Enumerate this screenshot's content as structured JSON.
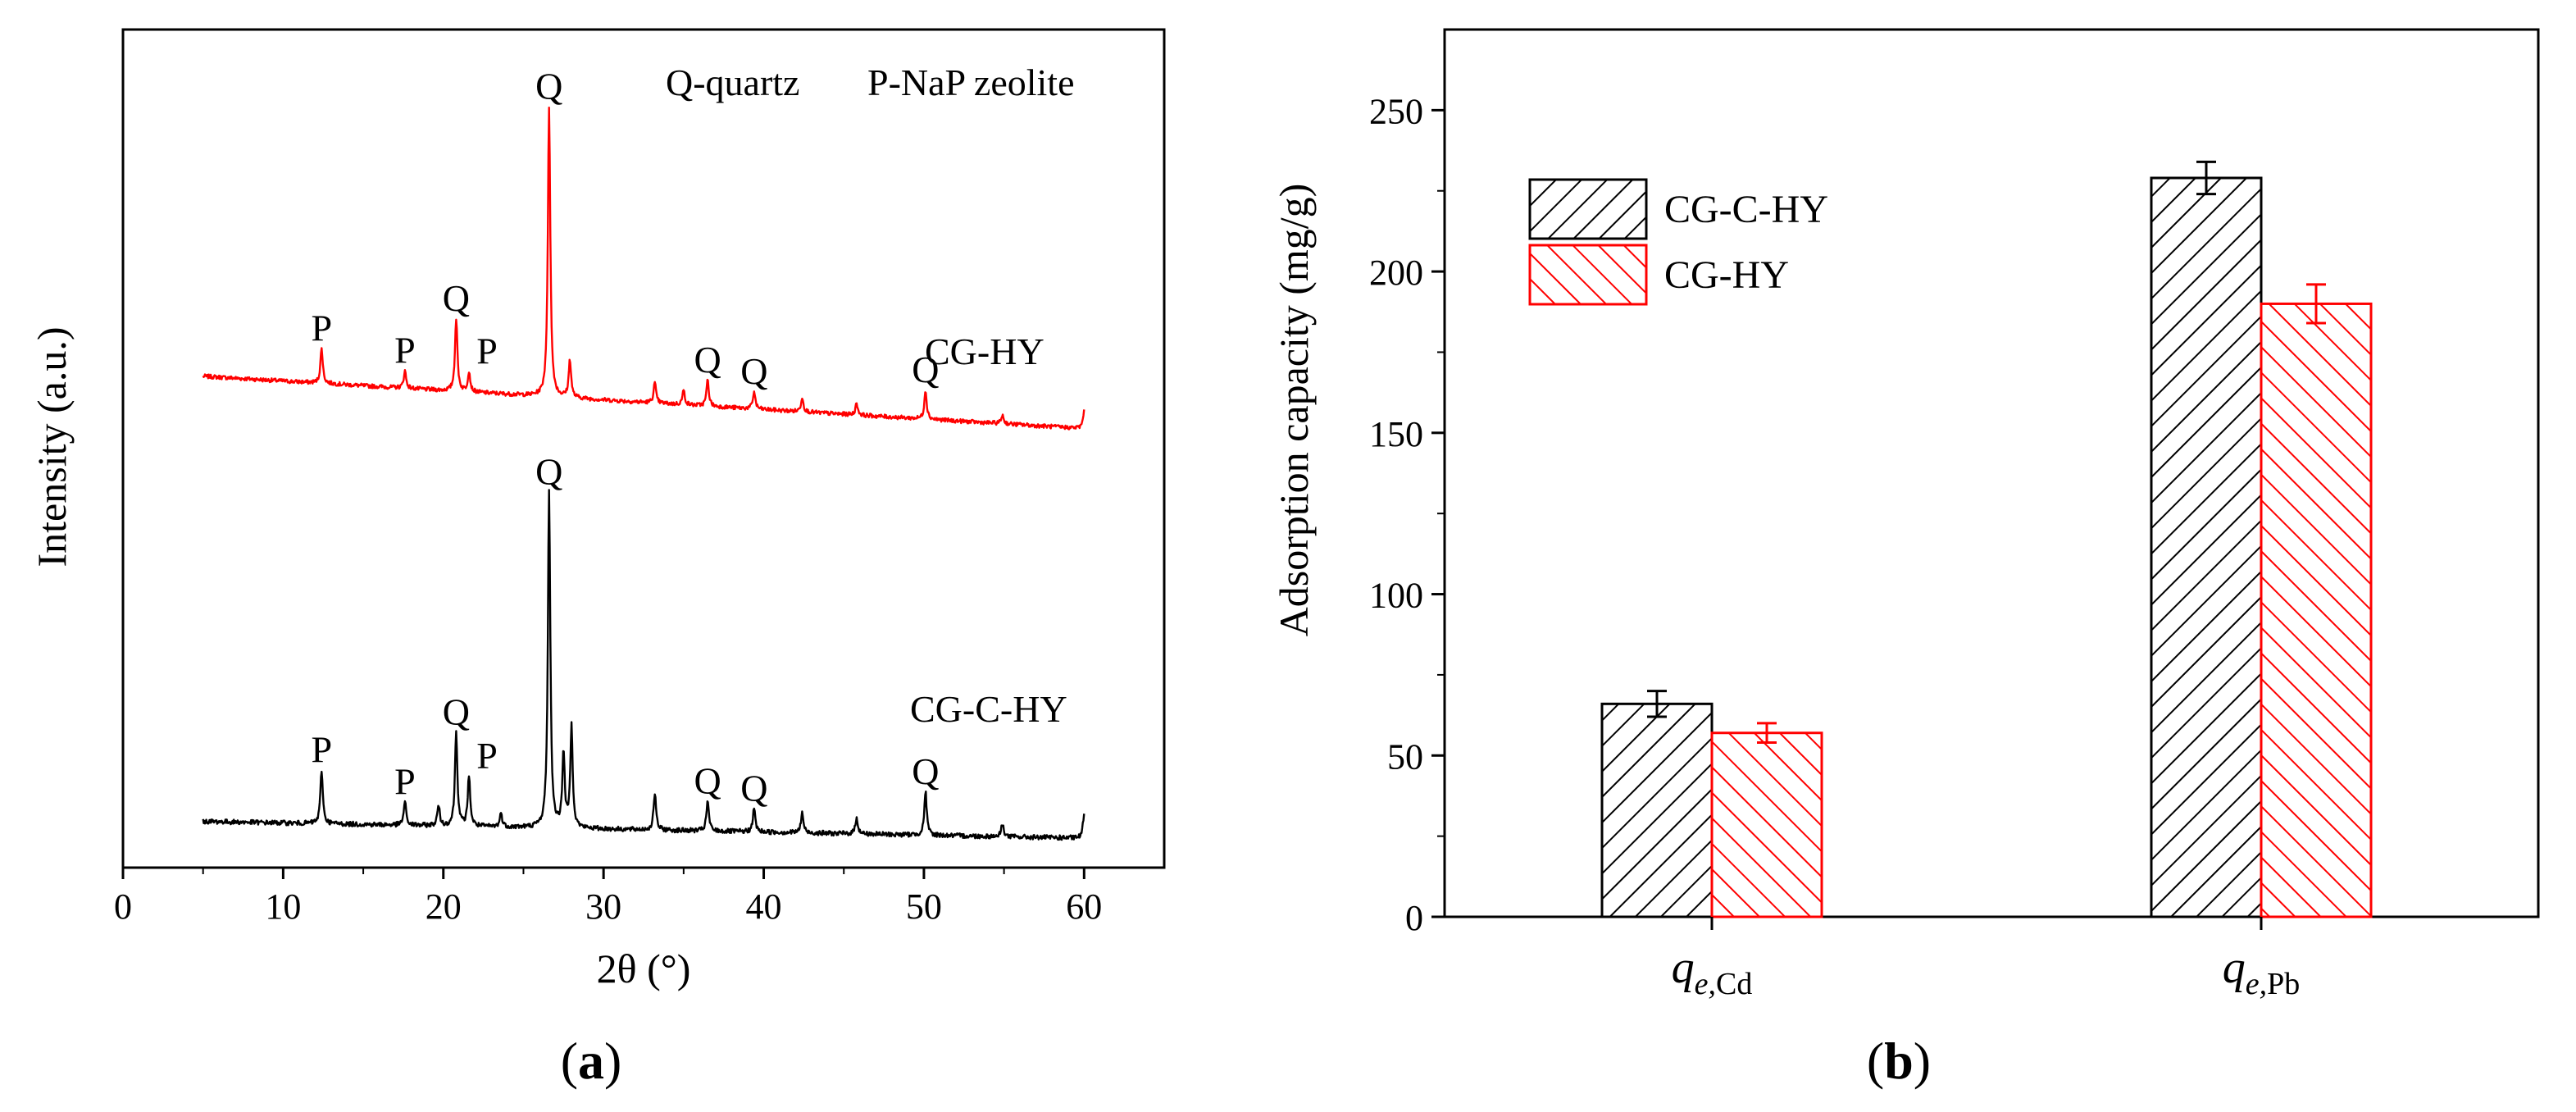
{
  "panels": {
    "a": {
      "caption_open": "(",
      "caption_letter": "a",
      "caption_close": ")"
    },
    "b": {
      "caption_open": "(",
      "caption_letter": "b",
      "caption_close": ")"
    }
  },
  "chart_data": [
    {
      "id": "a",
      "type": "line",
      "title": "",
      "xlabel": "2θ (°)",
      "ylabel": "Intensity (a.u.)",
      "xlim": [
        0,
        65
      ],
      "x_ticks": [
        0,
        10,
        20,
        30,
        40,
        50,
        60
      ],
      "y_ticks_shown": false,
      "grid": false,
      "annotations": [
        {
          "text": "Q-quartz",
          "placement": "top-right"
        },
        {
          "text": "P-NaP zeolite",
          "placement": "top-right"
        }
      ],
      "series": [
        {
          "name": "CG-HY",
          "color": "#ff0000",
          "x_range": [
            5,
            60
          ],
          "peaks": [
            {
              "x": 12.4,
              "height": 0.12,
              "label": "P"
            },
            {
              "x": 17.6,
              "height": 0.06,
              "label": "P"
            },
            {
              "x": 20.8,
              "height": 0.25,
              "label": "Q"
            },
            {
              "x": 21.6,
              "height": 0.07,
              "label": "P"
            },
            {
              "x": 26.6,
              "height": 1.0,
              "label": "Q"
            },
            {
              "x": 27.9,
              "height": 0.13
            },
            {
              "x": 33.2,
              "height": 0.07
            },
            {
              "x": 35.0,
              "height": 0.05
            },
            {
              "x": 36.5,
              "height": 0.09,
              "label": "Q"
            },
            {
              "x": 39.4,
              "height": 0.06,
              "label": "Q"
            },
            {
              "x": 42.4,
              "height": 0.05
            },
            {
              "x": 45.8,
              "height": 0.04
            },
            {
              "x": 50.1,
              "height": 0.1,
              "label": "Q"
            },
            {
              "x": 54.9,
              "height": 0.03
            },
            {
              "x": 60.0,
              "height": 0.06
            }
          ]
        },
        {
          "name": "CG-C-HY",
          "color": "#000000",
          "x_range": [
            5,
            60
          ],
          "peaks": [
            {
              "x": 12.4,
              "height": 0.16,
              "label": "P"
            },
            {
              "x": 17.6,
              "height": 0.07,
              "label": "P"
            },
            {
              "x": 19.7,
              "height": 0.06
            },
            {
              "x": 20.8,
              "height": 0.28,
              "label": "Q"
            },
            {
              "x": 21.6,
              "height": 0.15,
              "label": "P"
            },
            {
              "x": 23.6,
              "height": 0.04
            },
            {
              "x": 26.6,
              "height": 1.0,
              "label": "Q"
            },
            {
              "x": 27.5,
              "height": 0.22
            },
            {
              "x": 28.0,
              "height": 0.3
            },
            {
              "x": 33.2,
              "height": 0.11
            },
            {
              "x": 36.5,
              "height": 0.09,
              "label": "Q"
            },
            {
              "x": 39.4,
              "height": 0.07,
              "label": "Q"
            },
            {
              "x": 42.4,
              "height": 0.06
            },
            {
              "x": 45.8,
              "height": 0.05
            },
            {
              "x": 50.1,
              "height": 0.13,
              "label": "Q"
            },
            {
              "x": 54.9,
              "height": 0.04
            },
            {
              "x": 60.0,
              "height": 0.07
            }
          ]
        }
      ]
    },
    {
      "id": "b",
      "type": "bar",
      "title": "",
      "xlabel": "",
      "ylabel": "Adsorption capacity (mg/g)",
      "ylim": [
        0,
        275
      ],
      "y_ticks": [
        0,
        50,
        100,
        150,
        200,
        250
      ],
      "grid": false,
      "legend_position": "top-left",
      "categories": [
        {
          "symbol": "q",
          "subscript": "e,",
          "element": "Cd"
        },
        {
          "symbol": "q",
          "subscript": "e,",
          "element": "Pb"
        }
      ],
      "series": [
        {
          "name": "CG-C-HY",
          "color": "#000000",
          "hatch": "forward-diagonal",
          "values": [
            66,
            229
          ],
          "errors": [
            4,
            5
          ]
        },
        {
          "name": "CG-HY",
          "color": "#ff0000",
          "hatch": "backward-diagonal",
          "values": [
            57,
            190
          ],
          "errors": [
            3,
            6
          ]
        }
      ]
    }
  ]
}
